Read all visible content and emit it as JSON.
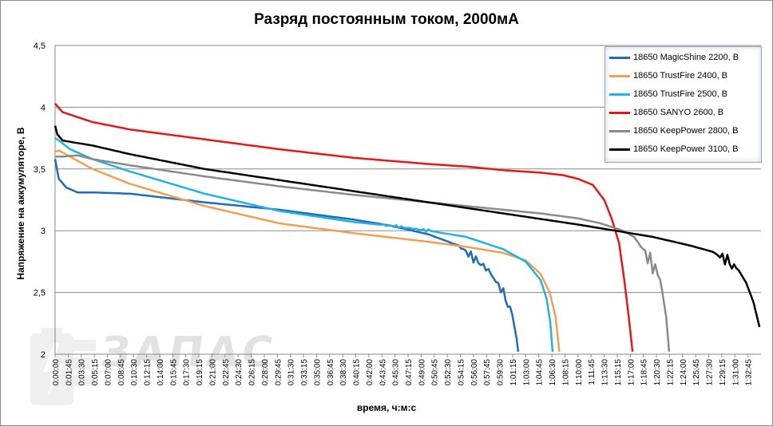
{
  "chart_data": {
    "type": "line",
    "title": "Разряд постоянным током, 2000мА",
    "xlabel": "время, ч:м:с",
    "ylabel": "Напряжение на аккумуляторе, В",
    "ylim": [
      2,
      4.5
    ],
    "yticks": [
      "2",
      "2,5",
      "3",
      "3,5",
      "4",
      "4,5"
    ],
    "ytick_values": [
      2,
      2.5,
      3,
      3.5,
      4,
      4.5
    ],
    "xlim_minutes": [
      0,
      94.5
    ],
    "xtick_step_seconds": 105,
    "xticks": [
      "0:00:00",
      "0:01:45",
      "0:03:30",
      "0:05:15",
      "0:07:00",
      "0:08:45",
      "0:10:30",
      "0:12:15",
      "0:14:00",
      "0:15:45",
      "0:17:30",
      "0:19:15",
      "0:21:00",
      "0:22:45",
      "0:24:30",
      "0:26:15",
      "0:28:00",
      "0:29:45",
      "0:31:30",
      "0:33:15",
      "0:35:00",
      "0:36:45",
      "0:38:30",
      "0:40:15",
      "0:42:00",
      "0:43:45",
      "0:45:30",
      "0:47:15",
      "0:49:00",
      "0:50:45",
      "0:52:30",
      "0:54:15",
      "0:56:00",
      "0:57:45",
      "0:59:30",
      "1:01:15",
      "1:03:00",
      "1:04:45",
      "1:06:30",
      "1:08:15",
      "1:10:00",
      "1:11:45",
      "1:13:30",
      "1:15:15",
      "1:17:00",
      "1:18:45",
      "1:20:30",
      "1:22:15",
      "1:24:00",
      "1:25:45",
      "1:27:30",
      "1:29:15",
      "1:31:00",
      "1:32:45"
    ],
    "grid": "horizontal",
    "legend_position": "top-right",
    "series": [
      {
        "name": "18650 MagicShine 2200, В",
        "color": "#1f6cb4",
        "x": [
          0,
          0.5,
          1.5,
          3,
          5,
          10,
          20,
          30,
          40,
          45,
          50,
          54,
          56,
          58,
          60,
          61.2,
          61.8,
          62
        ],
        "y": [
          3.58,
          3.42,
          3.35,
          3.31,
          3.31,
          3.3,
          3.23,
          3.17,
          3.09,
          3.04,
          2.97,
          2.88,
          2.78,
          2.68,
          2.5,
          2.32,
          2.12,
          2.02
        ],
        "noise_from": 54,
        "noise_to": 61,
        "noise_amp": 0.04
      },
      {
        "name": "18650 TrustFire 2400, В",
        "color": "#f0a050",
        "x": [
          0,
          0.5,
          2,
          5,
          10,
          20,
          30,
          40,
          50,
          55,
          60,
          63,
          65,
          66.2,
          67,
          67.5
        ],
        "y": [
          3.64,
          3.65,
          3.6,
          3.5,
          3.38,
          3.2,
          3.06,
          2.98,
          2.91,
          2.87,
          2.82,
          2.76,
          2.65,
          2.5,
          2.3,
          2.02
        ],
        "noise_from": 0,
        "noise_to": 0,
        "noise_amp": 0
      },
      {
        "name": "18650 TrustFire 2500, В",
        "color": "#22b2e0",
        "x": [
          0,
          0.5,
          2,
          5,
          10,
          20,
          30,
          40,
          45,
          50,
          55,
          60,
          63,
          65,
          65.8,
          66.3,
          66.6
        ],
        "y": [
          3.75,
          3.73,
          3.66,
          3.58,
          3.48,
          3.3,
          3.16,
          3.07,
          3.04,
          3.0,
          2.95,
          2.85,
          2.75,
          2.6,
          2.45,
          2.25,
          2.02
        ],
        "noise_from": 44,
        "noise_to": 50,
        "noise_amp": 0.012
      },
      {
        "name": "18650 SANYO  2600, В",
        "color": "#e01818",
        "x": [
          0,
          1,
          5,
          10,
          20,
          30,
          40,
          50,
          55,
          60,
          65,
          68,
          70,
          72,
          73.5,
          74.5,
          75.5,
          76.2,
          76.8,
          77.3
        ],
        "y": [
          4.03,
          3.96,
          3.88,
          3.82,
          3.74,
          3.66,
          3.59,
          3.54,
          3.52,
          3.49,
          3.47,
          3.45,
          3.42,
          3.37,
          3.25,
          3.1,
          2.9,
          2.6,
          2.3,
          2.02
        ],
        "noise_from": 0,
        "noise_to": 0,
        "noise_amp": 0
      },
      {
        "name": "18650 KeepPower  2800, В",
        "color": "#8a8a8a",
        "x": [
          0,
          1,
          3,
          5,
          10,
          20,
          30,
          40,
          50,
          60,
          65,
          70,
          73,
          76,
          77.5,
          79,
          80,
          81,
          81.8,
          82.2
        ],
        "y": [
          3.6,
          3.6,
          3.61,
          3.58,
          3.53,
          3.44,
          3.36,
          3.29,
          3.23,
          3.17,
          3.14,
          3.1,
          3.06,
          3.0,
          2.95,
          2.82,
          2.72,
          2.62,
          2.3,
          2.02
        ],
        "noise_from": 78,
        "noise_to": 81,
        "noise_amp": 0.07
      },
      {
        "name": "18650 KeepPower  3100, В",
        "color": "#000000",
        "x": [
          0,
          0.3,
          1,
          3,
          5,
          10,
          20,
          30,
          40,
          50,
          60,
          70,
          75,
          80,
          85,
          88,
          90,
          91.5,
          92.5,
          93.5,
          94.3
        ],
        "y": [
          3.85,
          3.78,
          3.73,
          3.71,
          3.69,
          3.62,
          3.5,
          3.41,
          3.32,
          3.23,
          3.14,
          3.05,
          3.0,
          2.95,
          2.88,
          2.83,
          2.76,
          2.68,
          2.58,
          2.42,
          2.22
        ],
        "noise_from": 88.5,
        "noise_to": 91,
        "noise_amp": 0.05
      }
    ]
  }
}
